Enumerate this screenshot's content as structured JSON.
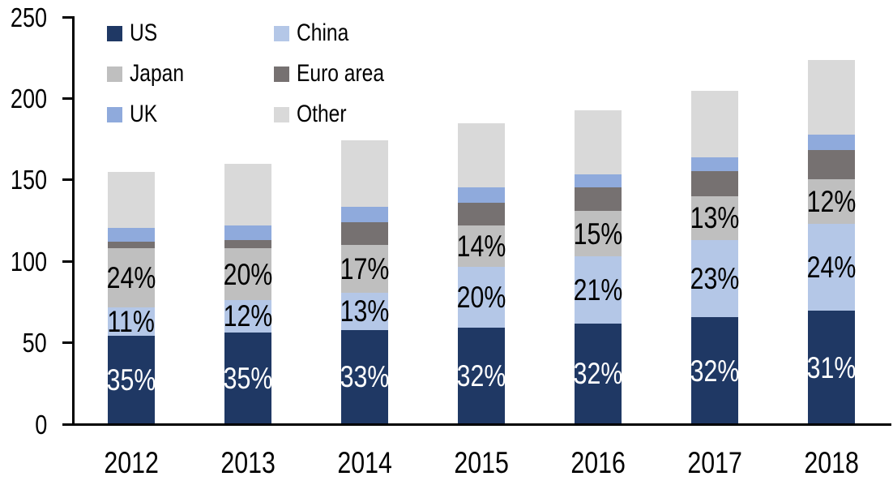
{
  "chart_data": {
    "type": "bar",
    "stacked": true,
    "title": "",
    "categories": [
      "2012",
      "2013",
      "2014",
      "2015",
      "2016",
      "2017",
      "2018"
    ],
    "series": [
      {
        "name": "US",
        "color": "#1F3864",
        "label_color": "#FFFFFF",
        "values": [
          54.5,
          56.5,
          58.0,
          59.5,
          62.0,
          65.5,
          69.5
        ],
        "labels": [
          "35%",
          "35%",
          "33%",
          "32%",
          "32%",
          "32%",
          "31%"
        ]
      },
      {
        "name": "China",
        "color": "#B4C7E7",
        "label_color": "#000000",
        "values": [
          17.0,
          19.5,
          22.5,
          37.0,
          41.0,
          47.5,
          53.5
        ],
        "labels": [
          "11%",
          "12%",
          "13%",
          "20%",
          "21%",
          "23%",
          "24%"
        ]
      },
      {
        "name": "Japan",
        "color": "#BFBFBF",
        "label_color": "#000000",
        "values": [
          36.5,
          32.0,
          29.5,
          25.5,
          28.0,
          27.0,
          27.5
        ],
        "labels": [
          "24%",
          "20%",
          "17%",
          "14%",
          "15%",
          "13%",
          "12%"
        ]
      },
      {
        "name": "Euro area",
        "color": "#767171",
        "label_color": "#000000",
        "values": [
          4.0,
          5.0,
          14.0,
          14.0,
          14.5,
          15.5,
          18.0
        ],
        "labels": []
      },
      {
        "name": "UK",
        "color": "#8FAADC",
        "label_color": "#000000",
        "values": [
          8.5,
          9.0,
          9.5,
          9.5,
          8.0,
          8.5,
          9.5
        ],
        "labels": []
      },
      {
        "name": "Other",
        "color": "#D9D9D9",
        "label_color": "#000000",
        "values": [
          34.5,
          38.0,
          41.0,
          39.5,
          39.0,
          40.5,
          45.5
        ],
        "labels": []
      }
    ],
    "totals": [
      155.0,
      160.0,
      174.5,
      185.0,
      192.5,
      204.5,
      223.5
    ],
    "xlabel": "",
    "ylabel": "",
    "ylim": [
      0,
      250
    ],
    "yticks": [
      0,
      50,
      100,
      150,
      200,
      250
    ],
    "grid": false,
    "legend_position": "top-left",
    "axis_color": "#000000"
  }
}
